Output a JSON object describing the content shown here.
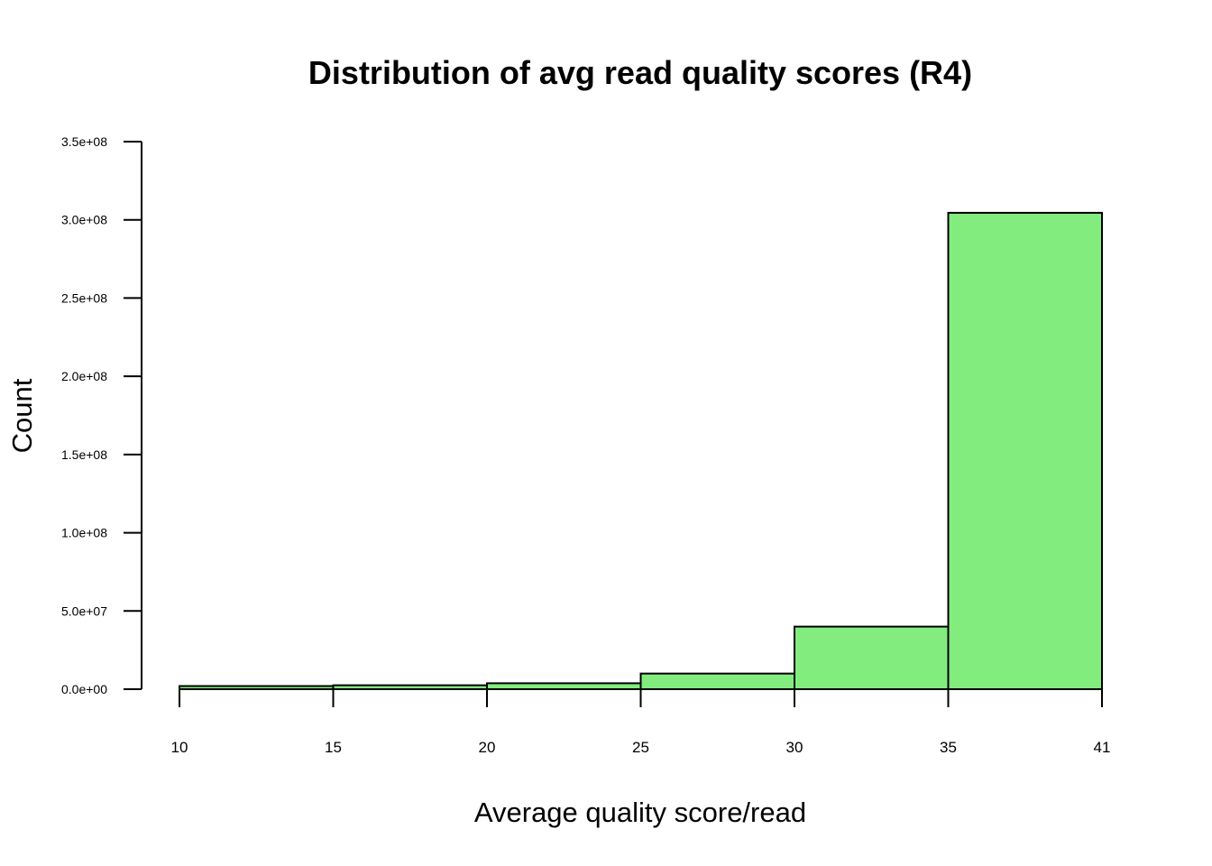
{
  "chart_data": {
    "type": "bar",
    "title": "Distribution of avg read quality scores (R4)",
    "xlabel": "Average quality score/read",
    "ylabel": "Count",
    "bin_edges": [
      10,
      15,
      20,
      25,
      30,
      35,
      41
    ],
    "x_tick_labels": [
      "10",
      "15",
      "20",
      "25",
      "30",
      "35",
      "41"
    ],
    "values": [
      2000000,
      2500000,
      3800000,
      10000000,
      40000000,
      304500000
    ],
    "ylim": [
      0,
      350000000
    ],
    "y_ticks": [
      0,
      50000000,
      100000000,
      150000000,
      200000000,
      250000000,
      300000000,
      350000000
    ],
    "y_tick_labels": [
      "0.0e+00",
      "5.0e+07",
      "1.0e+08",
      "1.5e+08",
      "2.0e+08",
      "2.5e+08",
      "3.0e+08",
      "3.5e+08"
    ],
    "bar_color": "#82ed7e",
    "grid": false,
    "legend": "none"
  }
}
